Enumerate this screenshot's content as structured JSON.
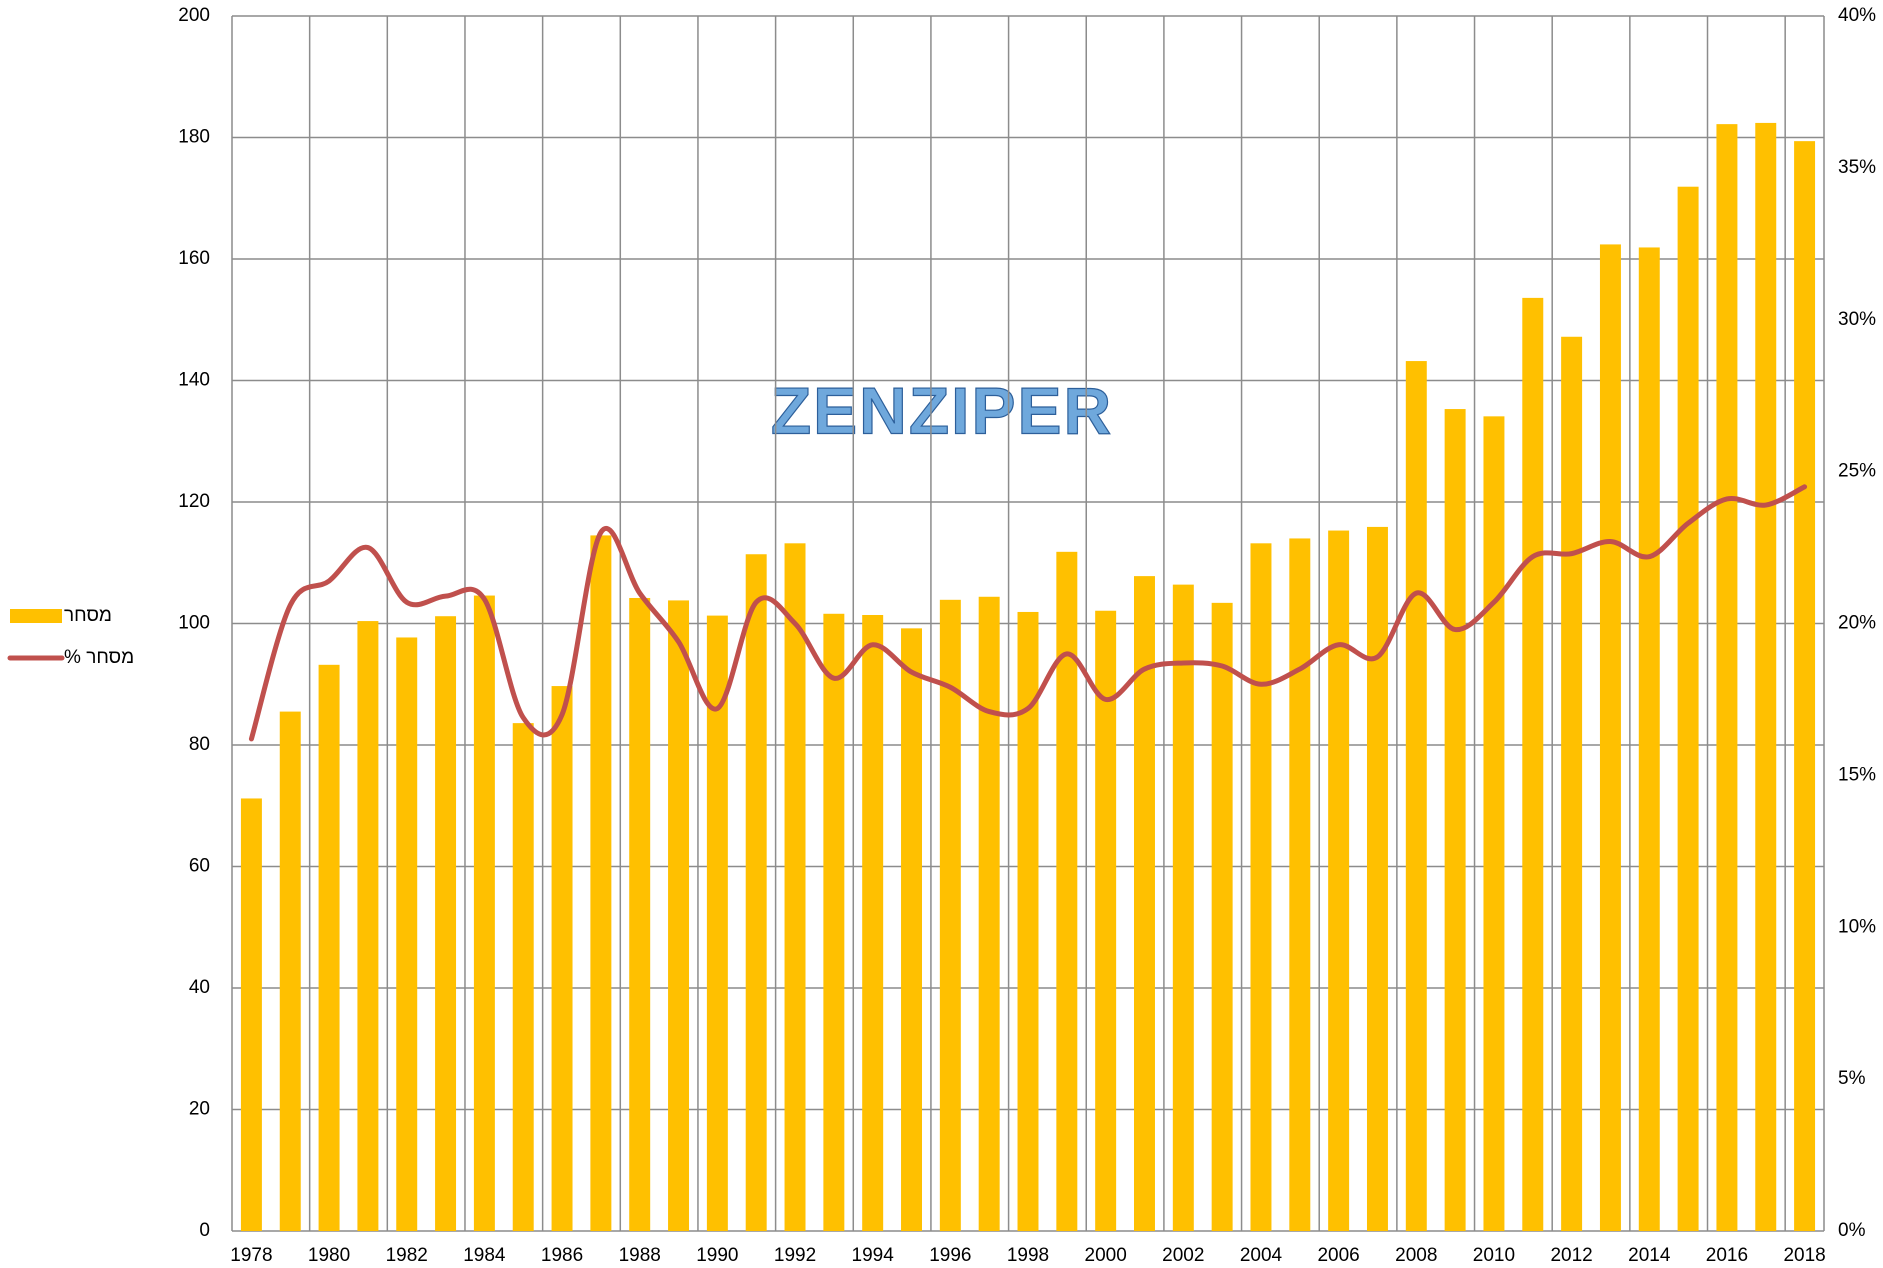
{
  "chart_data": {
    "type": "bar-line",
    "annotation": "ZENZIPER",
    "categories": [
      "1978",
      null,
      "1980",
      null,
      "1982",
      null,
      "1984",
      null,
      "1986",
      null,
      "1988",
      null,
      "1990",
      null,
      "1992",
      null,
      "1994",
      null,
      "1996",
      null,
      "1998",
      null,
      "2000",
      null,
      "2002",
      null,
      "2004",
      null,
      "2006",
      null,
      "2008",
      null,
      "2010",
      null,
      "2012",
      null,
      "2014",
      null,
      "2016",
      null,
      "2018"
    ],
    "series": [
      {
        "name": "מסחר",
        "type": "bar",
        "color": "#ffc000",
        "axis": "y",
        "values": [
          71.2,
          85.5,
          93.2,
          100.4,
          97.7,
          101.2,
          104.6,
          83.6,
          89.7,
          114.5,
          104.2,
          103.8,
          101.3,
          111.4,
          113.2,
          101.6,
          101.4,
          99.2,
          103.9,
          104.4,
          101.9,
          111.8,
          102.1,
          107.8,
          106.4,
          103.4,
          113.2,
          114.0,
          115.3,
          115.9,
          143.2,
          135.3,
          134.1,
          153.6,
          147.2,
          162.4,
          161.9,
          171.9,
          182.2,
          182.4,
          179.4
        ]
      },
      {
        "name": "% מסחר",
        "type": "line",
        "color": "#c0504d",
        "axis": "y2",
        "values": [
          16.2,
          20.6,
          21.4,
          22.5,
          20.7,
          20.9,
          20.8,
          16.9,
          17.0,
          23.0,
          21.0,
          19.4,
          17.2,
          20.7,
          20.0,
          18.2,
          19.3,
          18.4,
          17.9,
          17.1,
          17.2,
          19.0,
          17.5,
          18.5,
          18.7,
          18.6,
          18.0,
          18.5,
          19.3,
          18.9,
          21.0,
          19.8,
          20.7,
          22.2,
          22.3,
          22.7,
          22.2,
          23.3,
          24.1,
          23.9,
          24.5
        ]
      }
    ],
    "ylim": [
      0,
      200
    ],
    "yticks": [
      0,
      20,
      40,
      60,
      80,
      100,
      120,
      140,
      160,
      180,
      200
    ],
    "y2lim": [
      0,
      40
    ],
    "y2ticks": [
      {
        "value": 0,
        "label": "0%"
      },
      {
        "value": 5,
        "label": "5%"
      },
      {
        "value": 10,
        "label": "10%"
      },
      {
        "value": 15,
        "label": "15%"
      },
      {
        "value": 20,
        "label": "20%"
      },
      {
        "value": 25,
        "label": "25%"
      },
      {
        "value": 30,
        "label": "30%"
      },
      {
        "value": 35,
        "label": "35%"
      },
      {
        "value": 40,
        "label": "40%"
      }
    ],
    "grid": true,
    "legend": "left"
  }
}
